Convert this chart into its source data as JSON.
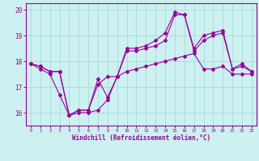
{
  "title": "",
  "xlabel": "Windchill (Refroidissement éolien,°C)",
  "background_color": "#cdf0f0",
  "line_color": "#990099",
  "grid_color": "#a8dede",
  "xlim": [
    -0.5,
    23.5
  ],
  "ylim": [
    15.5,
    20.25
  ],
  "xticks": [
    0,
    1,
    2,
    3,
    4,
    5,
    6,
    7,
    8,
    9,
    10,
    11,
    12,
    13,
    14,
    15,
    16,
    17,
    18,
    19,
    20,
    21,
    22,
    23
  ],
  "yticks": [
    16,
    17,
    18,
    19,
    20
  ],
  "series1": [
    17.9,
    17.8,
    17.6,
    17.6,
    15.9,
    16.1,
    16.1,
    17.3,
    16.6,
    17.4,
    18.5,
    18.5,
    18.6,
    18.8,
    19.1,
    19.9,
    19.8,
    18.5,
    19.0,
    19.1,
    19.2,
    17.7,
    17.9,
    17.6
  ],
  "series2": [
    17.9,
    17.8,
    17.6,
    17.6,
    15.9,
    16.1,
    16.1,
    17.1,
    17.4,
    17.4,
    18.4,
    18.4,
    18.5,
    18.6,
    18.8,
    19.8,
    19.8,
    18.4,
    18.8,
    19.0,
    19.1,
    17.7,
    17.8,
    17.6
  ],
  "series3": [
    17.9,
    17.7,
    17.5,
    16.7,
    15.9,
    16.0,
    16.0,
    16.1,
    16.5,
    17.4,
    17.6,
    17.7,
    17.8,
    17.9,
    18.0,
    18.1,
    18.2,
    18.3,
    17.7,
    17.7,
    17.8,
    17.5,
    17.5,
    17.5
  ]
}
